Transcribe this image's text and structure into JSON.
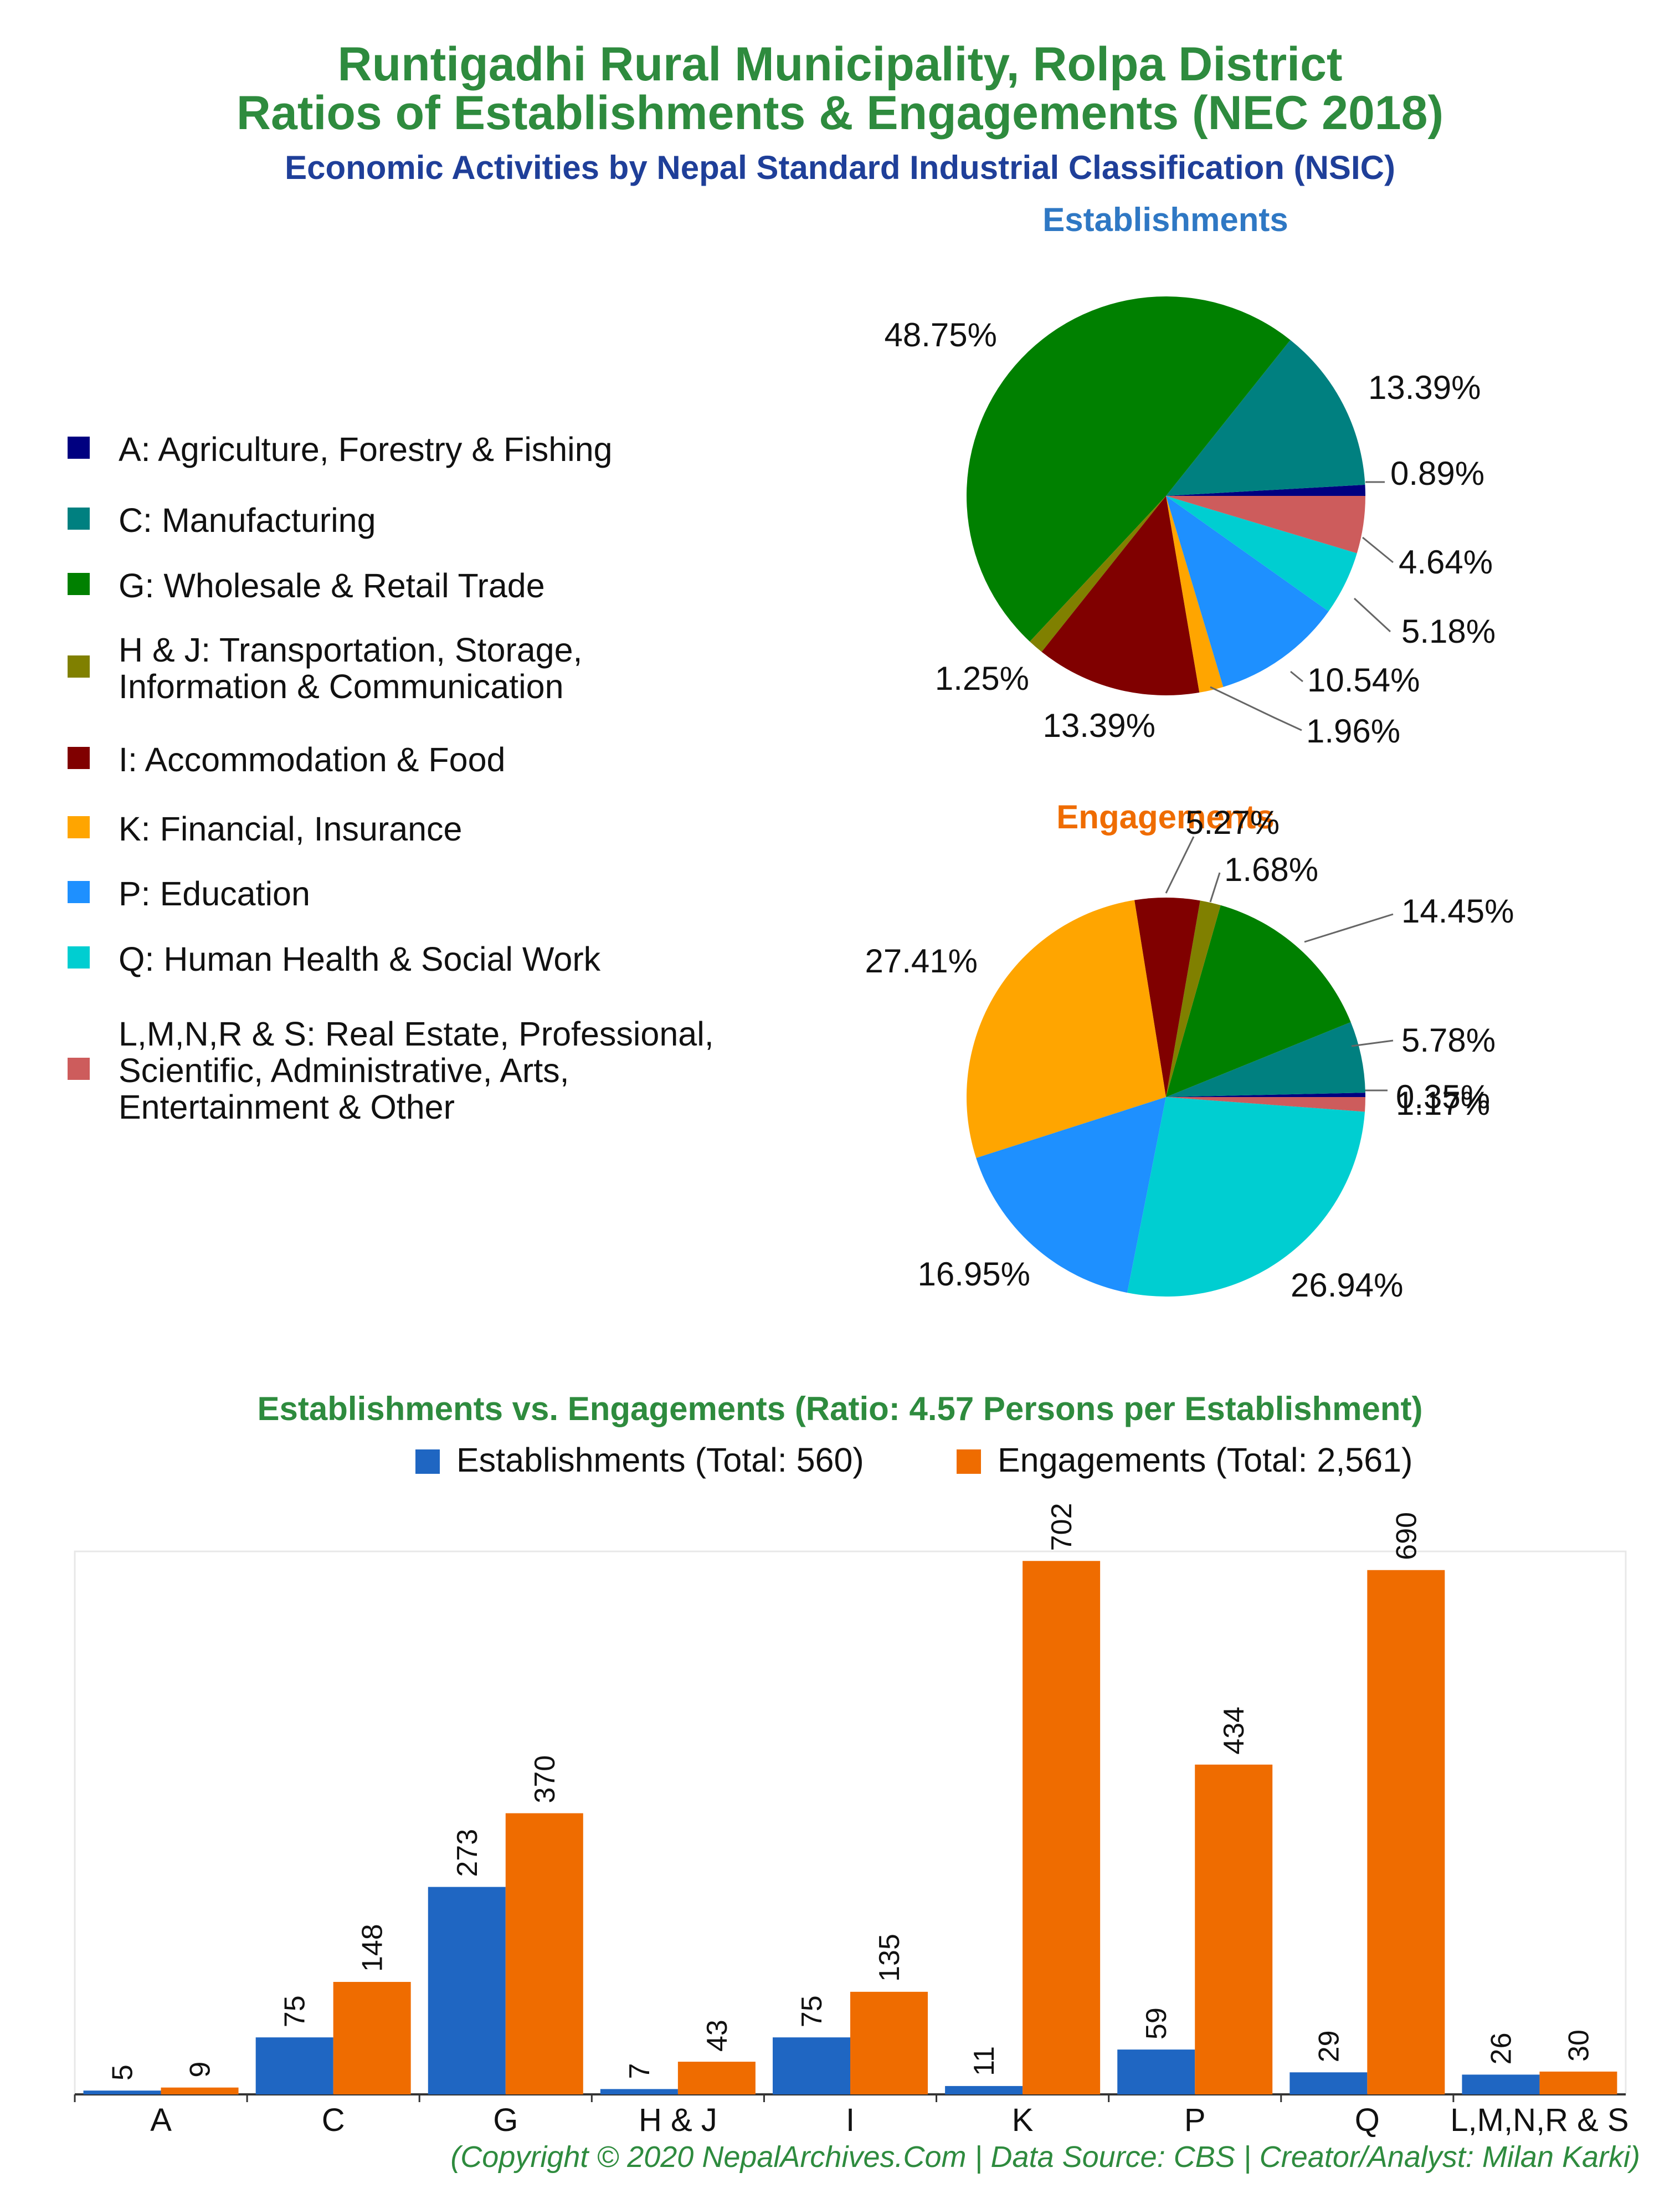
{
  "header": {
    "title_line1": "Runtigadhi Rural Municipality, Rolpa District",
    "title_line2": "Ratios of Establishments & Engagements (NEC 2018)",
    "subtitle": "Economic Activities by Nepal Standard Industrial Classification (NSIC)"
  },
  "legend": [
    {
      "label": "A: Agriculture, Forestry & Fishing",
      "color": "#000080"
    },
    {
      "label": "C: Manufacturing",
      "color": "#008080"
    },
    {
      "label": "G: Wholesale & Retail Trade",
      "color": "#008000"
    },
    {
      "label": "H & J: Transportation, Storage,\nInformation & Communication",
      "color": "#808000"
    },
    {
      "label": "I: Accommodation & Food",
      "color": "#800000"
    },
    {
      "label": "K: Financial, Insurance",
      "color": "#ffa500"
    },
    {
      "label": "P: Education",
      "color": "#1e90ff"
    },
    {
      "label": "Q: Human Health & Social Work",
      "color": "#00ced1"
    },
    {
      "label": "L,M,N,R & S: Real Estate, Professional,\nScientific, Administrative, Arts,\nEntertainment & Other",
      "color": "#cd5c5c"
    }
  ],
  "chart_data": [
    {
      "type": "pie",
      "title": "Establishments",
      "slices": [
        {
          "category": "A",
          "value": 0.89,
          "label": "0.89%"
        },
        {
          "category": "C",
          "value": 13.39,
          "label": "13.39%"
        },
        {
          "category": "G",
          "value": 48.75,
          "label": "48.75%"
        },
        {
          "category": "H & J",
          "value": 1.25,
          "label": "1.25%"
        },
        {
          "category": "I",
          "value": 13.39,
          "label": "13.39%"
        },
        {
          "category": "K",
          "value": 1.96,
          "label": "1.96%"
        },
        {
          "category": "P",
          "value": 10.54,
          "label": "10.54%"
        },
        {
          "category": "Q",
          "value": 5.18,
          "label": "5.18%"
        },
        {
          "category": "L,M,N,R & S",
          "value": 4.64,
          "label": "4.64%"
        }
      ]
    },
    {
      "type": "pie",
      "title": "Engagements",
      "slices": [
        {
          "category": "A",
          "value": 0.35,
          "label": "0.35%"
        },
        {
          "category": "C",
          "value": 5.78,
          "label": "5.78%"
        },
        {
          "category": "G",
          "value": 14.45,
          "label": "14.45%"
        },
        {
          "category": "H & J",
          "value": 1.68,
          "label": "1.68%"
        },
        {
          "category": "I",
          "value": 5.27,
          "label": "5.27%"
        },
        {
          "category": "K",
          "value": 27.41,
          "label": "27.41%"
        },
        {
          "category": "P",
          "value": 16.95,
          "label": "16.95%"
        },
        {
          "category": "Q",
          "value": 26.94,
          "label": "26.94%"
        },
        {
          "category": "L,M,N,R & S",
          "value": 1.17,
          "label": "1.17%"
        }
      ]
    },
    {
      "type": "bar",
      "title": "Establishments vs. Engagements (Ratio: 4.57 Persons per Establishment)",
      "categories": [
        "A",
        "C",
        "G",
        "H & J",
        "I",
        "K",
        "P",
        "Q",
        "L,M,N,R & S"
      ],
      "series": [
        {
          "name": "Establishments (Total: 560)",
          "color": "#1f66c2",
          "values": [
            5,
            75,
            273,
            7,
            75,
            11,
            59,
            29,
            26
          ]
        },
        {
          "name": "Engagements (Total: 2,561)",
          "color": "#ef6c00",
          "values": [
            9,
            148,
            370,
            43,
            135,
            702,
            434,
            690,
            30
          ]
        }
      ],
      "ylim": [
        0,
        740
      ],
      "grid": false,
      "legend_position": "top"
    }
  ],
  "footer": "(Copyright © 2020 NepalArchives.Com | Data Source: CBS | Creator/Analyst: Milan Karki)"
}
